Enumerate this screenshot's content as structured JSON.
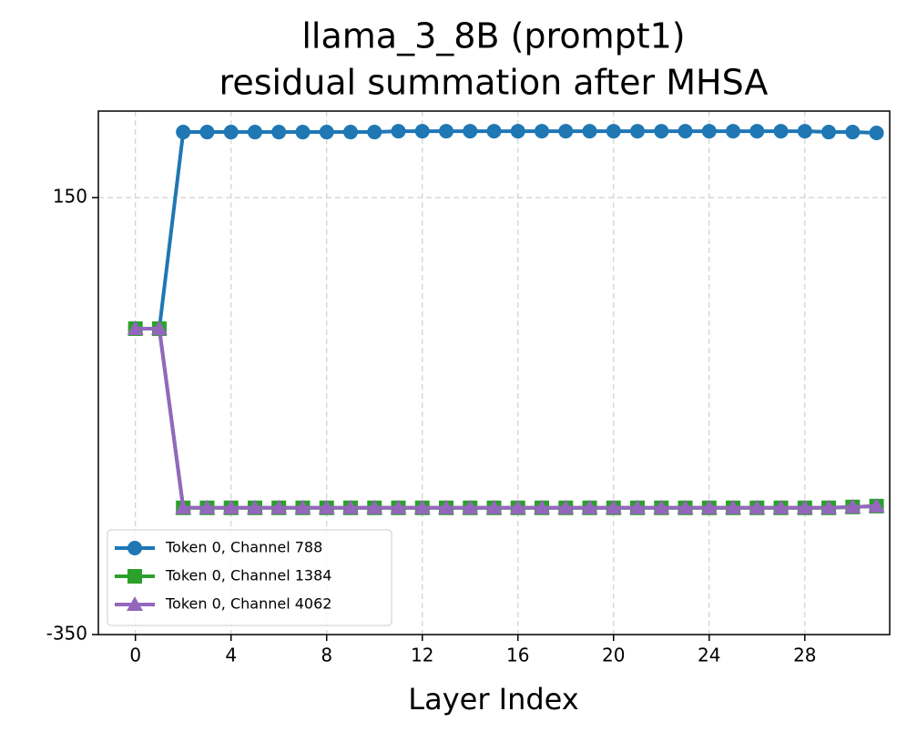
{
  "chart_data": {
    "type": "line",
    "title": "llama_3_8B (prompt1)",
    "subtitle": "residual summation after MHSA",
    "x_label": "Layer Index",
    "x": [
      0,
      1,
      2,
      3,
      4,
      5,
      6,
      7,
      8,
      9,
      10,
      11,
      12,
      13,
      14,
      15,
      16,
      17,
      18,
      19,
      20,
      21,
      22,
      23,
      24,
      25,
      26,
      27,
      28,
      29,
      30,
      31
    ],
    "series": [
      {
        "name": "Token 0, Channel 788",
        "color": "#1f77b4",
        "marker": "circle",
        "values": [
          0,
          0,
          225,
          225,
          225,
          225,
          225,
          225,
          225,
          225,
          225,
          226,
          226,
          226,
          226,
          226,
          226,
          226,
          226,
          226,
          226,
          226,
          226,
          226,
          226,
          226,
          226,
          226,
          226,
          225,
          225,
          224
        ]
      },
      {
        "name": "Token 0, Channel 1384",
        "color": "#2ca02c",
        "marker": "square",
        "values": [
          0,
          0,
          -205,
          -205,
          -205,
          -205,
          -205,
          -205,
          -205,
          -205,
          -205,
          -205,
          -205,
          -205,
          -205,
          -205,
          -205,
          -205,
          -205,
          -205,
          -205,
          -205,
          -205,
          -205,
          -205,
          -205,
          -205,
          -205,
          -205,
          -205,
          -204,
          -203
        ]
      },
      {
        "name": "Token 0, Channel 4062",
        "color": "#9467bd",
        "marker": "triangle",
        "values": [
          0,
          0,
          -205,
          -205,
          -205,
          -205,
          -205,
          -205,
          -205,
          -205,
          -205,
          -205,
          -205,
          -205,
          -205,
          -205,
          -205,
          -205,
          -205,
          -205,
          -205,
          -205,
          -205,
          -205,
          -205,
          -205,
          -205,
          -205,
          -205,
          -205,
          -204,
          -203
        ]
      }
    ],
    "xlim": [
      -1.55,
      31.55
    ],
    "xticks": [
      0,
      4,
      8,
      12,
      16,
      20,
      24,
      28
    ],
    "ylim": [
      -350,
      249
    ],
    "yticks": [
      -350,
      150
    ],
    "grid": true,
    "legend": "lower left"
  }
}
